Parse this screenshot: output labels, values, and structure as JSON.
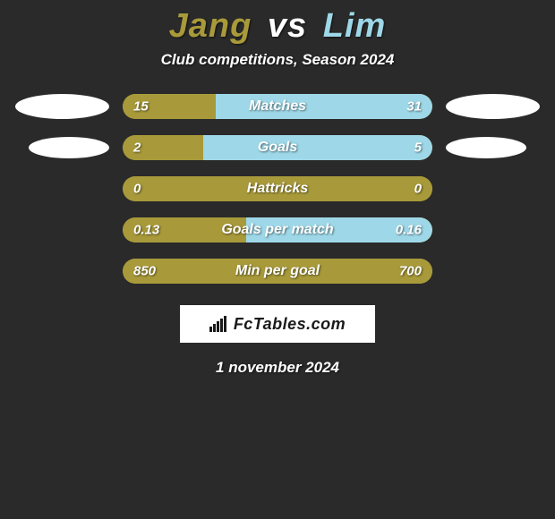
{
  "background_color": "#2a2a2a",
  "title": {
    "player1": "Jang",
    "vs": "vs",
    "player2": "Lim",
    "player1_color": "#a89a3a",
    "vs_color": "#ffffff",
    "player2_color": "#9ed8e8"
  },
  "subtitle": "Club competitions, Season 2024",
  "left_color": "#a89a3a",
  "right_color": "#9ed8e8",
  "metrics": [
    {
      "label": "Matches",
      "left_value": "15",
      "right_value": "31",
      "left_pct": 30,
      "right_pct": 70,
      "show_ellipses": true,
      "ellipse_size": "large"
    },
    {
      "label": "Goals",
      "left_value": "2",
      "right_value": "5",
      "left_pct": 26,
      "right_pct": 74,
      "show_ellipses": true,
      "ellipse_size": "small"
    },
    {
      "label": "Hattricks",
      "left_value": "0",
      "right_value": "0",
      "left_pct": 100,
      "right_pct": 0,
      "show_ellipses": false
    },
    {
      "label": "Goals per match",
      "left_value": "0.13",
      "right_value": "0.16",
      "left_pct": 40,
      "right_pct": 60,
      "show_ellipses": false
    },
    {
      "label": "Min per goal",
      "left_value": "850",
      "right_value": "700",
      "left_pct": 100,
      "right_pct": 0,
      "show_ellipses": false
    }
  ],
  "brand": "FcTables.com",
  "date": "1 november 2024",
  "ellipse_color": "#ffffff"
}
